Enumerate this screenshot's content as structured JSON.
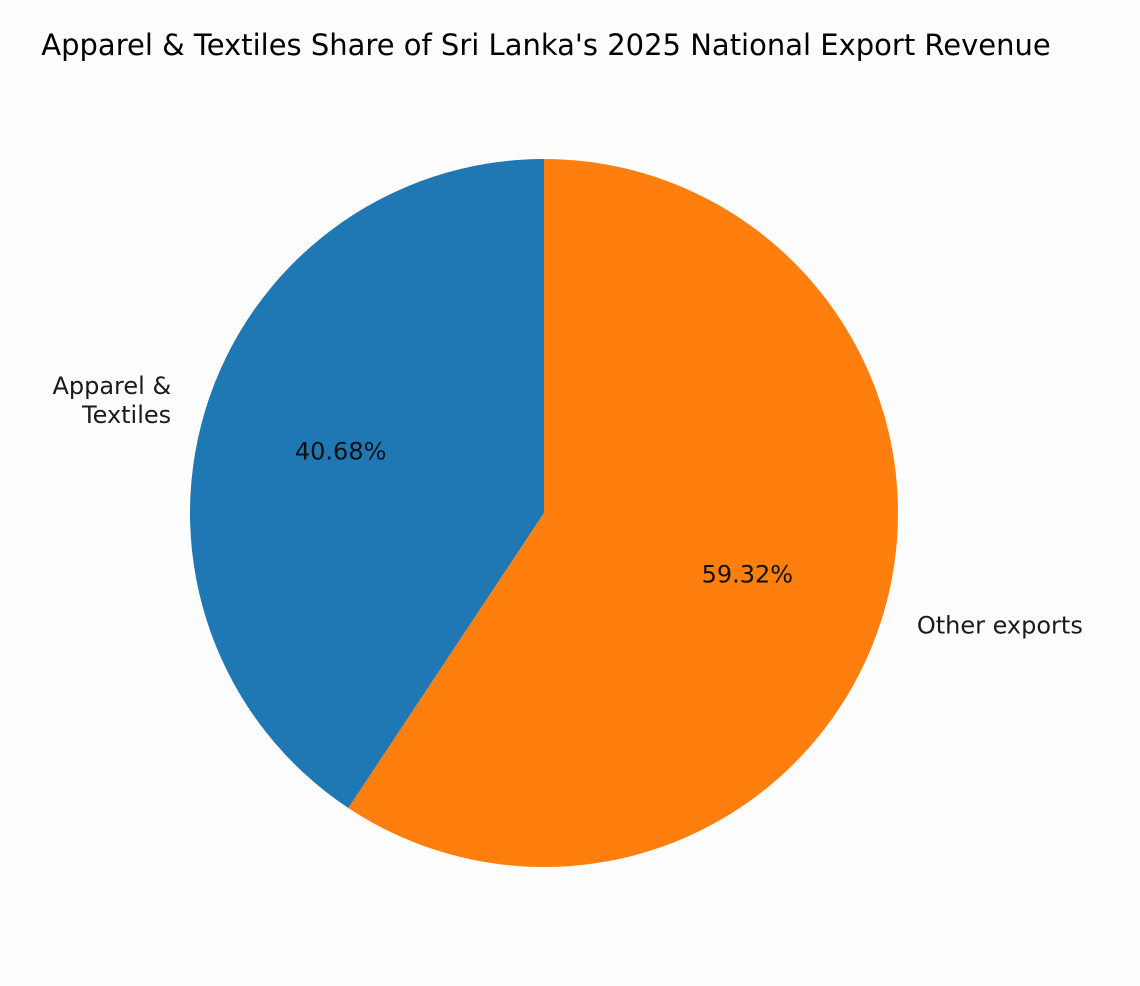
{
  "chart_data": {
    "type": "pie",
    "title": "Apparel & Textiles Share of Sri Lanka's 2025 National Export Revenue",
    "slices": [
      {
        "label_lines": [
          "Apparel &",
          "Textiles"
        ],
        "value": 40.68,
        "percent_label": "40.68%",
        "color": "#1f77b4"
      },
      {
        "label_lines": [
          "Other exports"
        ],
        "value": 59.32,
        "percent_label": "59.32%",
        "color": "#ff7f0e"
      }
    ],
    "start_angle": "top (12 o'clock)",
    "direction": "counterclockwise"
  }
}
